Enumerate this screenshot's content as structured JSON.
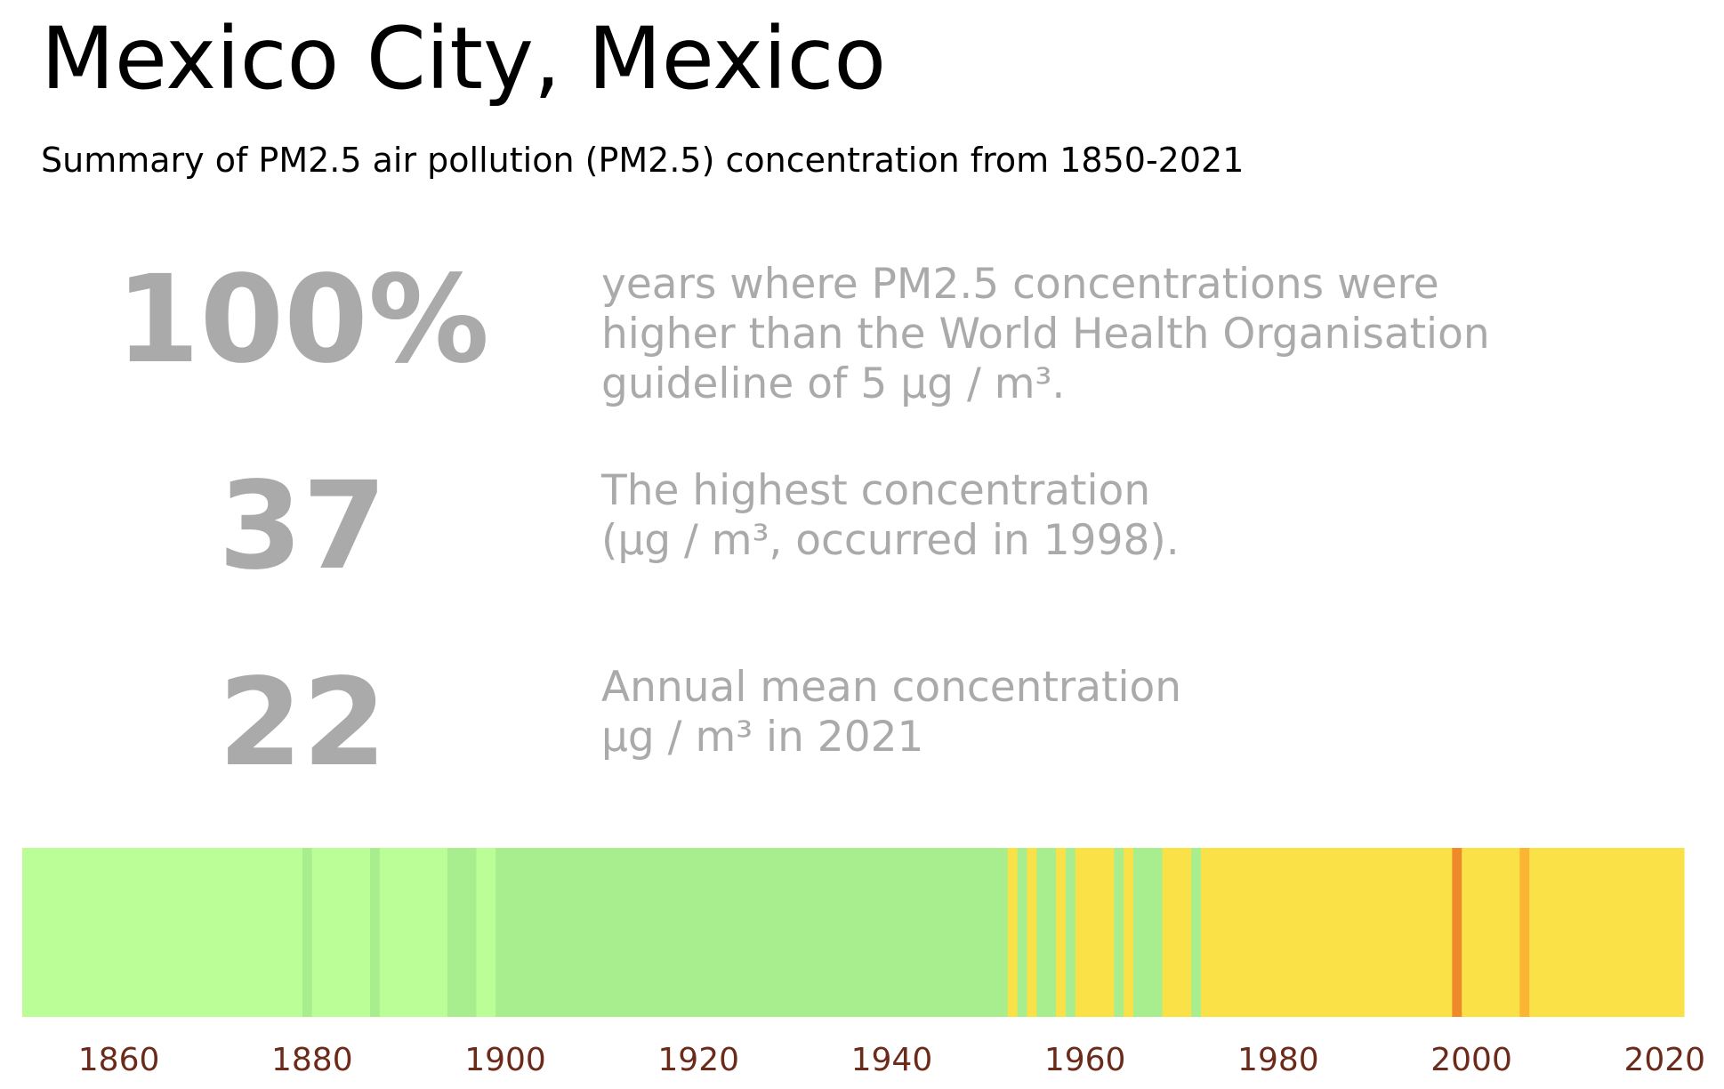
{
  "header": {
    "title": "Mexico City, Mexico",
    "subtitle": "Summary of PM2.5 air pollution (PM2.5) concentration from 1850-2021"
  },
  "stats": [
    {
      "value": "100%",
      "lines": [
        "years where PM2.5 concentrations were",
        "higher than the World Health Organisation",
        "guideline of 5 µg / m³."
      ]
    },
    {
      "value": "37",
      "lines": [
        "The highest concentration",
        "(µg / m³, occurred in 1998)."
      ]
    },
    {
      "value": "22",
      "lines": [
        "Annual mean concentration",
        "µg / m³ in 2021"
      ]
    }
  ],
  "colors": {
    "stat_text": "#aaaaaa",
    "tick_label": "#6b2a1a",
    "levels": {
      "L0": "#bbfe97",
      "L1": "#a8ee8f",
      "L2": "#f9e147",
      "L3": "#fbb533",
      "L4": "#ef8a2a"
    }
  },
  "chart_data": {
    "type": "heatmap",
    "title": "",
    "xlabel": "",
    "ylabel": "",
    "xlim": [
      1850,
      2022
    ],
    "x_ticks": [
      1860,
      1880,
      1900,
      1920,
      1940,
      1960,
      1980,
      2000,
      2020
    ],
    "segments": [
      {
        "start": 1850,
        "end": 1879,
        "level": "L0"
      },
      {
        "start": 1879,
        "end": 1880,
        "level": "L1"
      },
      {
        "start": 1880,
        "end": 1886,
        "level": "L0"
      },
      {
        "start": 1886,
        "end": 1887,
        "level": "L1"
      },
      {
        "start": 1887,
        "end": 1894,
        "level": "L0"
      },
      {
        "start": 1894,
        "end": 1897,
        "level": "L1"
      },
      {
        "start": 1897,
        "end": 1899,
        "level": "L0"
      },
      {
        "start": 1899,
        "end": 1952,
        "level": "L1"
      },
      {
        "start": 1952,
        "end": 1953,
        "level": "L2"
      },
      {
        "start": 1953,
        "end": 1954,
        "level": "L1"
      },
      {
        "start": 1954,
        "end": 1955,
        "level": "L2"
      },
      {
        "start": 1955,
        "end": 1957,
        "level": "L1"
      },
      {
        "start": 1957,
        "end": 1958,
        "level": "L2"
      },
      {
        "start": 1958,
        "end": 1959,
        "level": "L1"
      },
      {
        "start": 1959,
        "end": 1963,
        "level": "L2"
      },
      {
        "start": 1963,
        "end": 1964,
        "level": "L1"
      },
      {
        "start": 1964,
        "end": 1965,
        "level": "L2"
      },
      {
        "start": 1965,
        "end": 1968,
        "level": "L1"
      },
      {
        "start": 1968,
        "end": 1971,
        "level": "L2"
      },
      {
        "start": 1971,
        "end": 1972,
        "level": "L1"
      },
      {
        "start": 1972,
        "end": 1998,
        "level": "L2"
      },
      {
        "start": 1998,
        "end": 1999,
        "level": "L4"
      },
      {
        "start": 1999,
        "end": 2005,
        "level": "L2"
      },
      {
        "start": 2005,
        "end": 2006,
        "level": "L3"
      },
      {
        "start": 2006,
        "end": 2022,
        "level": "L2"
      }
    ]
  }
}
